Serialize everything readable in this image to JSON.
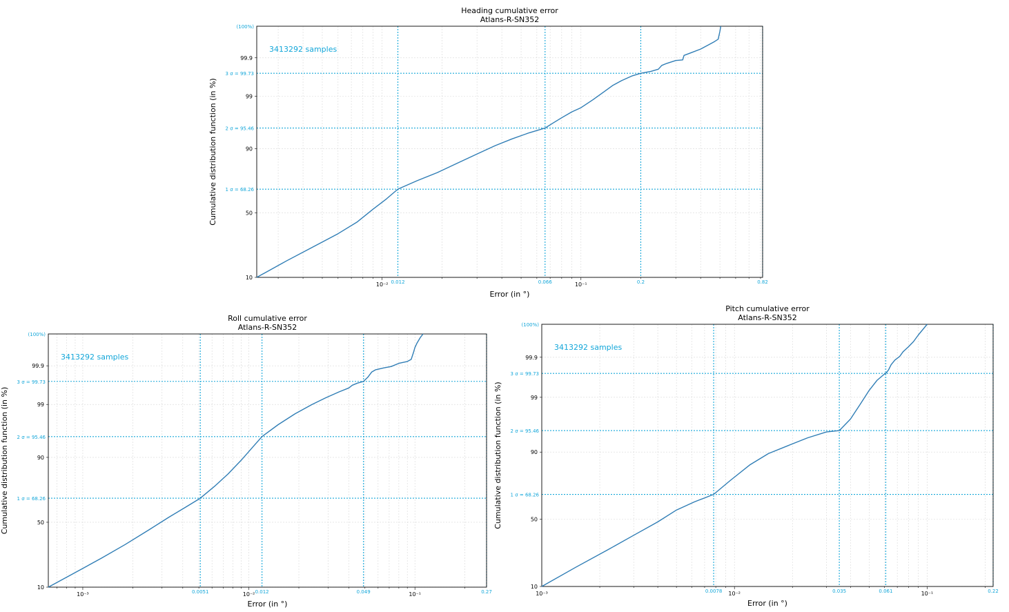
{
  "colors": {
    "curve": "#2f7db5",
    "accent": "#12a6d9",
    "grid": "#d7d7d7",
    "axis": "#000000"
  },
  "chart_data": [
    {
      "id": "heading",
      "type": "line",
      "title": "Heading cumulative error",
      "subtitle": "Atlans-R-SN352",
      "xlabel": "Error (in °)",
      "ylabel": "Cumulative distribution function (in %)",
      "x_scale": "log",
      "y_scale": "normal-probability",
      "xlim": [
        0.00234,
        0.82
      ],
      "ylim": [
        10,
        99.99
      ],
      "samples_label": "3413292 samples",
      "top_label": "(100%)",
      "yticks": [
        10,
        50,
        90,
        99,
        99.9
      ],
      "ytick_labels": [
        "10",
        "50",
        "90",
        "99",
        "99.9"
      ],
      "xticks_major": [
        0.01,
        0.1
      ],
      "xtick_labels": [
        "10⁻²",
        "10⁻¹"
      ],
      "sigma_lines": [
        {
          "value": 68.26,
          "label": "1 σ = 68.26"
        },
        {
          "value": 95.46,
          "label": "2 σ = 95.46"
        },
        {
          "value": 99.73,
          "label": "3 σ = 99.73"
        }
      ],
      "x_markers": [
        {
          "value": 0.012,
          "label": "0.012"
        },
        {
          "value": 0.066,
          "label": "0.066"
        },
        {
          "value": 0.2,
          "label": "0.2"
        },
        {
          "value": 0.82,
          "label": "0.82"
        }
      ],
      "curve": {
        "x": [
          0.00234,
          0.0033,
          0.0045,
          0.006,
          0.0075,
          0.009,
          0.0105,
          0.012,
          0.015,
          0.019,
          0.024,
          0.03,
          0.037,
          0.045,
          0.055,
          0.066,
          0.072,
          0.08,
          0.09,
          0.1,
          0.115,
          0.13,
          0.145,
          0.16,
          0.18,
          0.2,
          0.225,
          0.245,
          0.255,
          0.27,
          0.3,
          0.325,
          0.33,
          0.36,
          0.4,
          0.44,
          0.47,
          0.49,
          0.5,
          0.505
        ],
        "y": [
          10,
          17,
          25,
          34,
          43,
          53,
          61,
          68.26,
          74,
          79,
          84,
          88,
          91,
          93,
          94.5,
          95.46,
          96.3,
          97.1,
          97.8,
          98.2,
          98.8,
          99.2,
          99.45,
          99.58,
          99.68,
          99.73,
          99.76,
          99.79,
          99.835,
          99.855,
          99.88,
          99.885,
          99.915,
          99.93,
          99.945,
          99.96,
          99.968,
          99.973,
          99.985,
          99.99
        ]
      }
    },
    {
      "id": "roll",
      "type": "line",
      "title": "Roll cumulative error",
      "subtitle": "Atlans-R-SN352",
      "xlabel": "Error (in °)",
      "ylabel": "Cumulative distribution function (in %)",
      "x_scale": "log",
      "y_scale": "normal-probability",
      "xlim": [
        0.00062,
        0.27
      ],
      "ylim": [
        10,
        99.99
      ],
      "samples_label": "3413292 samples",
      "top_label": "(100%)",
      "yticks": [
        10,
        50,
        90,
        99,
        99.9
      ],
      "ytick_labels": [
        "10",
        "50",
        "90",
        "99",
        "99.9"
      ],
      "xticks_major": [
        0.001,
        0.01,
        0.1
      ],
      "xtick_labels": [
        "10⁻³",
        "10⁻²",
        "10⁻¹"
      ],
      "sigma_lines": [
        {
          "value": 68.26,
          "label": "1 σ = 68.26"
        },
        {
          "value": 95.46,
          "label": "2 σ = 95.46"
        },
        {
          "value": 99.73,
          "label": "3 σ = 99.73"
        }
      ],
      "x_markers": [
        {
          "value": 0.0051,
          "label": "0.0051"
        },
        {
          "value": 0.012,
          "label": "0.012"
        },
        {
          "value": 0.049,
          "label": "0.049"
        },
        {
          "value": 0.27,
          "label": "0.27"
        }
      ],
      "curve": {
        "x": [
          0.00062,
          0.0009,
          0.0013,
          0.0018,
          0.0025,
          0.0033,
          0.0042,
          0.0051,
          0.0062,
          0.0075,
          0.009,
          0.0105,
          0.012,
          0.015,
          0.019,
          0.024,
          0.029,
          0.035,
          0.04,
          0.042,
          0.045,
          0.049,
          0.052,
          0.055,
          0.058,
          0.065,
          0.072,
          0.08,
          0.09,
          0.095,
          0.098,
          0.1,
          0.103,
          0.108,
          0.112
        ],
        "y": [
          10,
          16,
          24,
          33,
          44,
          54,
          62,
          68.26,
          76,
          83,
          89,
          93,
          95.46,
          97.3,
          98.4,
          99.0,
          99.3,
          99.5,
          99.6,
          99.66,
          99.7,
          99.73,
          99.79,
          99.85,
          99.87,
          99.885,
          99.895,
          99.915,
          99.925,
          99.935,
          99.96,
          99.972,
          99.98,
          99.987,
          99.99
        ]
      }
    },
    {
      "id": "pitch",
      "type": "line",
      "title": "Pitch cumulative error",
      "subtitle": "Atlans-R-SN352",
      "xlabel": "Error (in °)",
      "ylabel": "Cumulative distribution function (in %)",
      "x_scale": "log",
      "y_scale": "normal-probability",
      "xlim": [
        0.001,
        0.22
      ],
      "ylim": [
        10,
        99.99
      ],
      "samples_label": "3413292 samples",
      "top_label": "(100%)",
      "yticks": [
        10,
        50,
        90,
        99,
        99.9
      ],
      "ytick_labels": [
        "10",
        "50",
        "90",
        "99",
        "99.9"
      ],
      "xticks_major": [
        0.001,
        0.01,
        0.1
      ],
      "xtick_labels": [
        "10⁻³",
        "10⁻²",
        "10⁻¹"
      ],
      "sigma_lines": [
        {
          "value": 68.26,
          "label": "1 σ = 68.26"
        },
        {
          "value": 95.46,
          "label": "2 σ = 95.46"
        },
        {
          "value": 99.73,
          "label": "3 σ = 99.73"
        }
      ],
      "x_markers": [
        {
          "value": 0.0078,
          "label": "0.0078"
        },
        {
          "value": 0.035,
          "label": "0.035"
        },
        {
          "value": 0.061,
          "label": "0.061"
        },
        {
          "value": 0.22,
          "label": "0.22"
        }
      ],
      "curve": {
        "x": [
          0.001,
          0.0015,
          0.0022,
          0.003,
          0.004,
          0.005,
          0.0062,
          0.0078,
          0.0095,
          0.012,
          0.015,
          0.019,
          0.024,
          0.03,
          0.035,
          0.04,
          0.045,
          0.05,
          0.055,
          0.06,
          0.061,
          0.063,
          0.065,
          0.068,
          0.072,
          0.075,
          0.08,
          0.085,
          0.09,
          0.1
        ],
        "y": [
          10,
          18,
          28,
          38,
          48,
          57,
          63,
          68.26,
          77,
          85,
          89.5,
          92,
          94,
          95.2,
          95.46,
          97.2,
          98.6,
          99.3,
          99.6,
          99.72,
          99.73,
          99.78,
          99.84,
          99.88,
          99.905,
          99.93,
          99.95,
          99.965,
          99.978,
          99.99
        ]
      }
    }
  ]
}
